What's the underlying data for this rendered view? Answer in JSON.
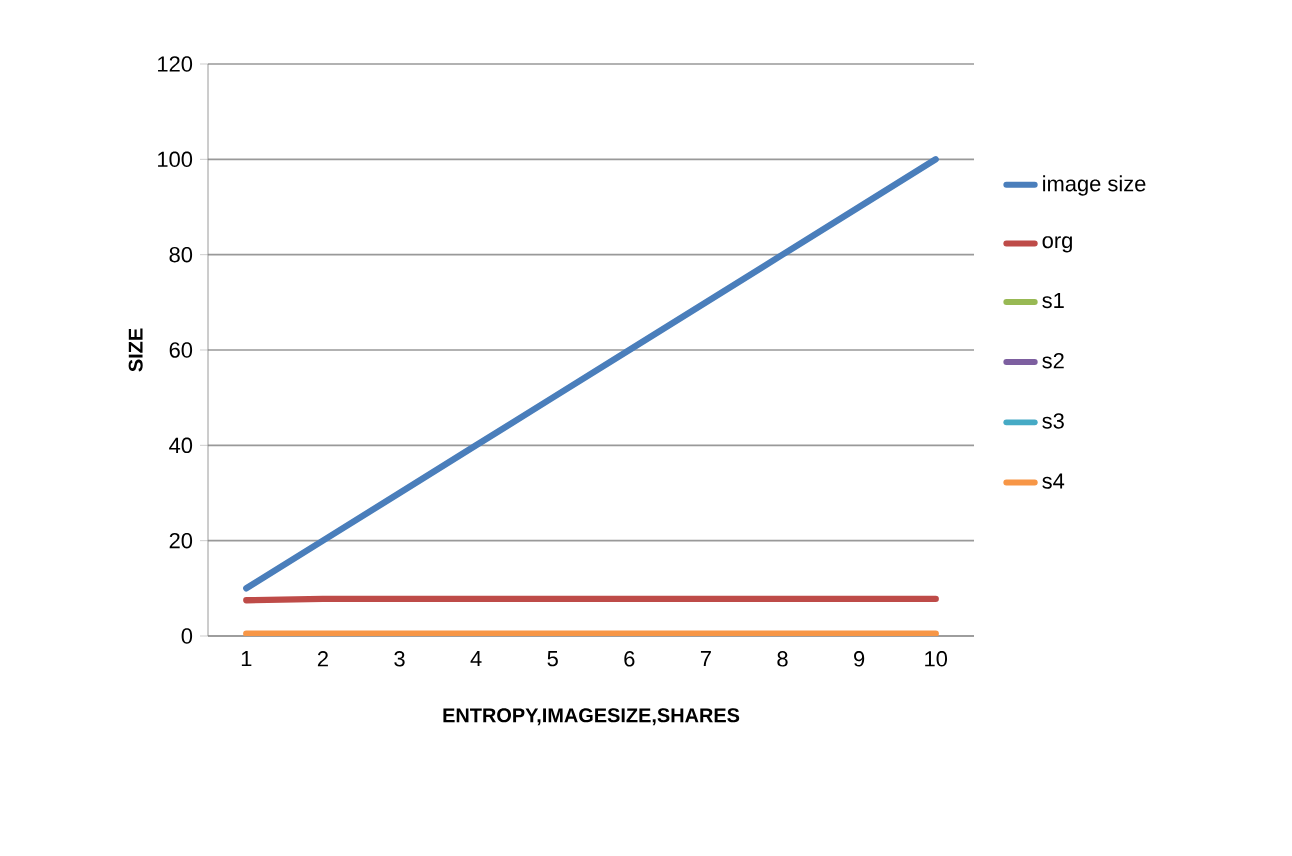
{
  "chart_data": {
    "type": "line",
    "xlabel": "ENTROPY,IMAGESIZE,SHARES",
    "ylabel": "SIZE",
    "categories": [
      "1",
      "2",
      "3",
      "4",
      "5",
      "6",
      "7",
      "8",
      "9",
      "10"
    ],
    "series": [
      {
        "name": "image size",
        "color": "#4a7ebb",
        "values": [
          10,
          20,
          30,
          40,
          50,
          60,
          70,
          80,
          90,
          100
        ]
      },
      {
        "name": "org",
        "color": "#be4b48",
        "values": [
          7.5,
          7.8,
          7.8,
          7.8,
          7.8,
          7.8,
          7.8,
          7.8,
          7.8,
          7.8
        ]
      },
      {
        "name": "s1",
        "color": "#98b954",
        "values": [
          null,
          null,
          null,
          null,
          null,
          null,
          null,
          null,
          null,
          null
        ]
      },
      {
        "name": "s2",
        "color": "#7d5fa0",
        "values": [
          null,
          null,
          null,
          null,
          null,
          null,
          null,
          null,
          null,
          null
        ]
      },
      {
        "name": "s3",
        "color": "#46aac5",
        "values": [
          null,
          null,
          null,
          null,
          null,
          null,
          null,
          null,
          null,
          null
        ]
      },
      {
        "name": "s4",
        "color": "#f79646",
        "values": [
          0.5,
          0.5,
          0.5,
          0.5,
          0.5,
          0.5,
          0.5,
          0.5,
          0.5,
          0.5
        ]
      }
    ],
    "ylim": [
      0,
      120
    ],
    "yticks": [
      0,
      20,
      40,
      60,
      80,
      100,
      120
    ],
    "grid": "y",
    "legend": "right",
    "marker": "none",
    "line_style": "solid"
  }
}
